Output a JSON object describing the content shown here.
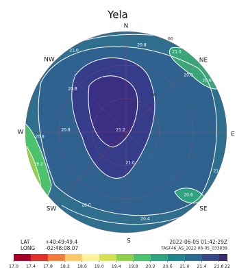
{
  "chart_data": {
    "type": "polar-contour",
    "title": "Yela",
    "directions": [
      "N",
      "NE",
      "E",
      "SE",
      "S",
      "SW",
      "W",
      "NW"
    ],
    "altitude_labels": [
      60,
      30
    ],
    "contour_labels": [
      {
        "value": 21,
        "label": "21.0"
      },
      {
        "value": 20.8,
        "label": "20.8"
      },
      {
        "value": 21,
        "label": "21.0"
      },
      {
        "value": 20.8,
        "label": "20.8"
      },
      {
        "value": 20.6,
        "label": "20.6"
      },
      {
        "value": 20.8,
        "label": "20.8"
      },
      {
        "value": 21.2,
        "label": "21.2"
      },
      {
        "value": 21,
        "label": "21.0"
      },
      {
        "value": 20.8,
        "label": "20.8"
      },
      {
        "value": 20.6,
        "label": "20.6"
      },
      {
        "value": 20.4,
        "label": "20.4"
      },
      {
        "value": 20,
        "label": "20.0"
      },
      {
        "value": 19.2,
        "label": "19.2"
      },
      {
        "value": 20.6,
        "label": "20.6"
      },
      {
        "value": 21,
        "label": "21.0"
      }
    ],
    "info": {
      "lat_label": "LAT",
      "lat": "+40:49:49.4",
      "long_label": "LONG",
      "long": "-02:48:08.07",
      "datetime": "2022-06-05 01:42:29Z",
      "file": "TASF46_AS_2022-06-05_033839"
    },
    "colorbar": {
      "lim": [
        17,
        22
      ],
      "ticks": [
        {
          "value": 17,
          "label": "17.0"
        },
        17.4,
        17.8,
        18.2,
        18.6,
        {
          "value": 19,
          "label": "19.0"
        },
        19.4,
        19.8,
        20.2,
        20.6,
        {
          "value": 21,
          "label": "21.0"
        },
        21.4,
        21.8,
        22
      ],
      "colors": [
        "#a50026",
        "#e0302a",
        "#f57c3a",
        "#fdc86a",
        "#fff09a",
        "#d4e157",
        "#8fd14f",
        "#4cc26c",
        "#2fa37f",
        "#21848d",
        "#2a6a8e",
        "#38488a",
        "#3b2a6e"
      ]
    }
  }
}
